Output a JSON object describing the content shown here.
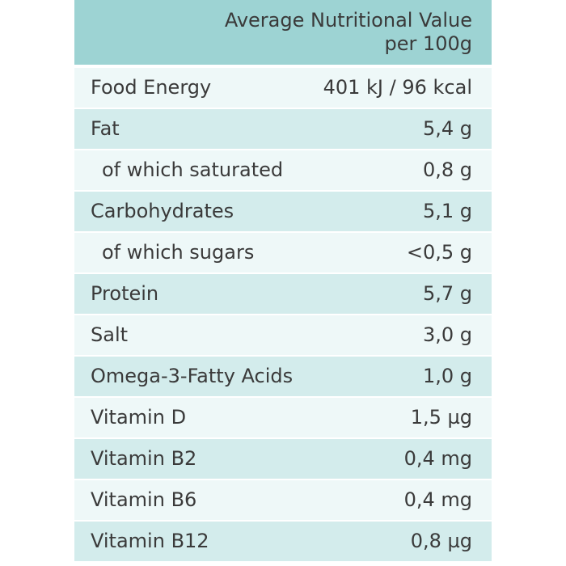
{
  "header": {
    "line1": "Average Nutritional Value",
    "line2": "per 100g"
  },
  "rows": [
    {
      "label": "Food Energy",
      "value": "401 kJ / 96 kcal"
    },
    {
      "label": "Fat",
      "value": "5,4 g"
    },
    {
      "label": "of which saturated",
      "value": "0,8 g"
    },
    {
      "label": "Carbohydrates",
      "value": "5,1 g"
    },
    {
      "label": "of which sugars",
      "value": "<0,5 g"
    },
    {
      "label": "Protein",
      "value": "5,7 g"
    },
    {
      "label": "Salt",
      "value": "3,0 g"
    },
    {
      "label": "Omega-3-Fatty Acids",
      "value": "1,0 g"
    },
    {
      "label": "Vitamin D",
      "value": "1,5 µg"
    },
    {
      "label": "Vitamin B2",
      "value": "0,4 mg"
    },
    {
      "label": "Vitamin B6",
      "value": "0,4 mg"
    },
    {
      "label": "Vitamin B12",
      "value": "0,8 µg"
    }
  ],
  "colors": {
    "header_bg": "#9dd3d3",
    "row_light": "#eef8f8",
    "row_dark": "#d3ecec",
    "text": "#3a3a3a"
  }
}
